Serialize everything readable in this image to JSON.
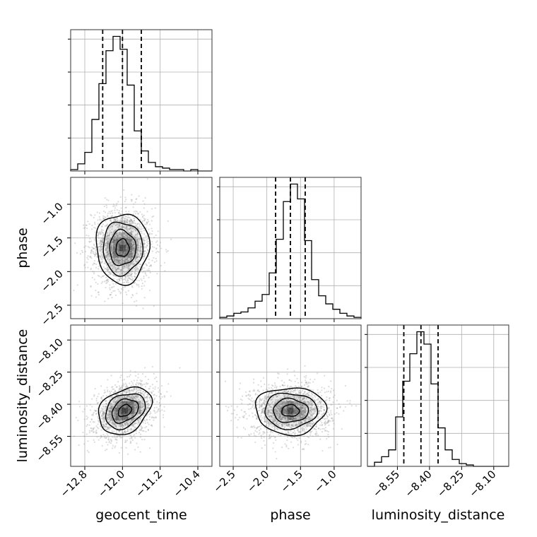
{
  "chart_data": {
    "type": "corner",
    "parameters": [
      "geocent_time",
      "phase",
      "luminosity_distance"
    ],
    "axis_labels": {
      "x": [
        "geocent_time",
        "phase",
        "luminosity_distance"
      ],
      "y": [
        "",
        "phase",
        "luminosity_distance"
      ]
    },
    "ranges": {
      "geocent_time": [
        -13.1,
        -10.1
      ],
      "phase": [
        -2.7,
        -0.6
      ],
      "luminosity_distance": [
        -8.69,
        -8.03
      ]
    },
    "ticks": {
      "geocent_time": {
        "values": [
          -12.8,
          -12.0,
          -11.2,
          -10.4
        ],
        "labels": [
          "−12.8",
          "−12.0",
          "−11.2",
          "−10.4"
        ]
      },
      "phase": {
        "values": [
          -2.5,
          -2.0,
          -1.5,
          -1.0
        ],
        "labels": [
          "−2.5",
          "−2.0",
          "−1.5",
          "−1.0"
        ]
      },
      "luminosity_distance": {
        "values": [
          -8.55,
          -8.4,
          -8.25,
          -8.1
        ],
        "labels": [
          "−8.55",
          "−8.40",
          "−8.25",
          "−8.10"
        ]
      }
    },
    "quantiles": {
      "geocent_time": [
        -12.42,
        -12.0,
        -11.6
      ],
      "phase": [
        -1.87,
        -1.65,
        -1.43
      ],
      "luminosity_distance": [
        -8.52,
        -8.44,
        -8.36
      ]
    },
    "histograms": {
      "geocent_time": {
        "edges": [
          -13.1,
          -12.95,
          -12.8,
          -12.65,
          -12.5,
          -12.35,
          -12.2,
          -12.05,
          -11.9,
          -11.75,
          -11.6,
          -11.45,
          -11.3,
          -11.15,
          -11.0,
          -10.85,
          -10.7,
          -10.55,
          -10.4,
          -10.25,
          -10.1
        ],
        "counts": [
          1,
          5,
          13,
          36,
          61,
          84,
          94,
          85,
          60,
          28,
          14,
          6,
          3,
          2,
          1,
          1,
          0,
          1,
          0,
          0
        ]
      },
      "phase": {
        "edges": [
          -2.7,
          -2.595,
          -2.49,
          -2.385,
          -2.28,
          -2.175,
          -2.07,
          -1.965,
          -1.86,
          -1.755,
          -1.65,
          -1.545,
          -1.44,
          -1.335,
          -1.23,
          -1.125,
          -1.02,
          -0.915,
          -0.81,
          -0.705,
          -0.6
        ],
        "counts": [
          1,
          2,
          4,
          5,
          8,
          13,
          18,
          34,
          59,
          87,
          100,
          89,
          58,
          29,
          17,
          11,
          7,
          4,
          2,
          1
        ]
      },
      "luminosity_distance": {
        "edges": [
          -8.69,
          -8.657,
          -8.624,
          -8.591,
          -8.558,
          -8.525,
          -8.492,
          -8.459,
          -8.426,
          -8.393,
          -8.36,
          -8.327,
          -8.294,
          -8.261,
          -8.228,
          -8.195,
          -8.162,
          -8.129,
          -8.096,
          -8.063,
          -8.03
        ],
        "counts": [
          0,
          3,
          7,
          12,
          36,
          62,
          82,
          98,
          89,
          60,
          28,
          12,
          5,
          2,
          1,
          0,
          0,
          0,
          0,
          0
        ]
      }
    },
    "posterior_2d": {
      "phase_vs_geocent_time": {
        "mean": [
          -12.0,
          -1.65
        ],
        "sd": [
          0.28,
          0.26
        ],
        "corr": 0.0
      },
      "luminosity_distance_vs_geocent_time": {
        "mean": [
          -11.95,
          -8.43
        ],
        "sd": [
          0.28,
          0.055
        ],
        "corr": 0.3
      },
      "luminosity_distance_vs_phase": {
        "mean": [
          -1.65,
          -8.43
        ],
        "sd": [
          0.26,
          0.055
        ],
        "corr": 0.0
      }
    },
    "grid": true,
    "colors": {
      "line": "#000000",
      "grid": "#b0b0b0",
      "samples": "#9a9a9a"
    }
  }
}
